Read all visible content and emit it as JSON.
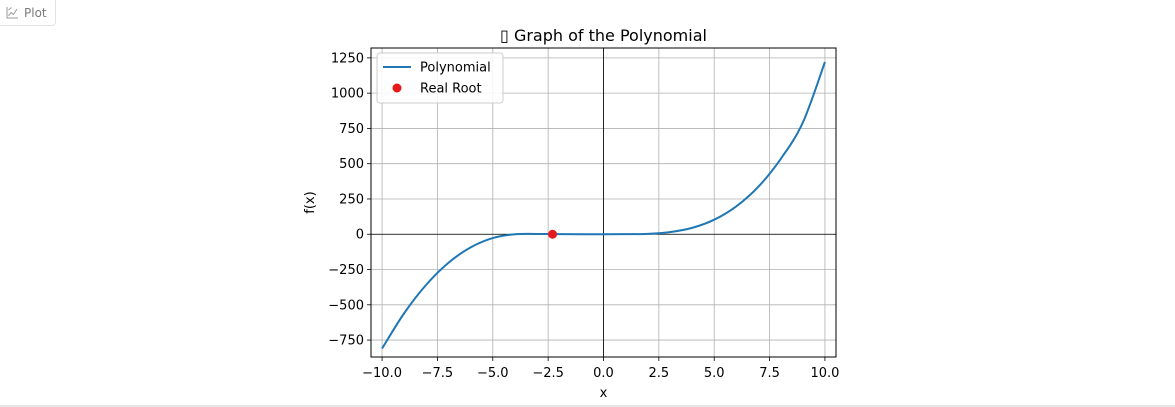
{
  "tab": {
    "label": "Plot",
    "icon": "chart-icon"
  },
  "colors": {
    "line": "#1f77b4",
    "root": "#e41a1c",
    "grid": "#b0b0b0",
    "axis": "#000000"
  },
  "chart_data": {
    "type": "line",
    "title": "▯ Graph of the Polynomial",
    "xlabel": "x",
    "ylabel": "f(x)",
    "xlim": [
      -10.5,
      10.5
    ],
    "ylim": [
      -870,
      1320
    ],
    "xticks": [
      -10,
      -7.5,
      -5,
      -2.5,
      0,
      2.5,
      5,
      7.5,
      10
    ],
    "xtick_labels": [
      "−10.0",
      "−7.5",
      "−5.0",
      "−2.5",
      "0.0",
      "2.5",
      "5.0",
      "7.5",
      "10.0"
    ],
    "yticks": [
      -750,
      -500,
      -250,
      0,
      250,
      500,
      750,
      1000,
      1250
    ],
    "ytick_labels": [
      "−750",
      "−500",
      "−250",
      "0",
      "250",
      "500",
      "750",
      "1000",
      "1250"
    ],
    "grid": true,
    "legend_position": "top-left",
    "series": [
      {
        "name": "Polynomial",
        "kind": "line",
        "x": [
          -10,
          -9,
          -8,
          -7,
          -6,
          -5,
          -4,
          -3,
          -2,
          -1,
          0,
          1,
          2,
          3,
          4,
          5,
          6,
          7,
          8,
          9,
          10
        ],
        "y": [
          -810,
          -559,
          -357,
          -202,
          -93,
          -27,
          0,
          2,
          1,
          0,
          0,
          1,
          3,
          15,
          45,
          103,
          198,
          338,
          533,
          791,
          1221
        ]
      },
      {
        "name": "Real Root",
        "kind": "scatter",
        "x": [
          -2.3
        ],
        "y": [
          0
        ]
      }
    ]
  }
}
